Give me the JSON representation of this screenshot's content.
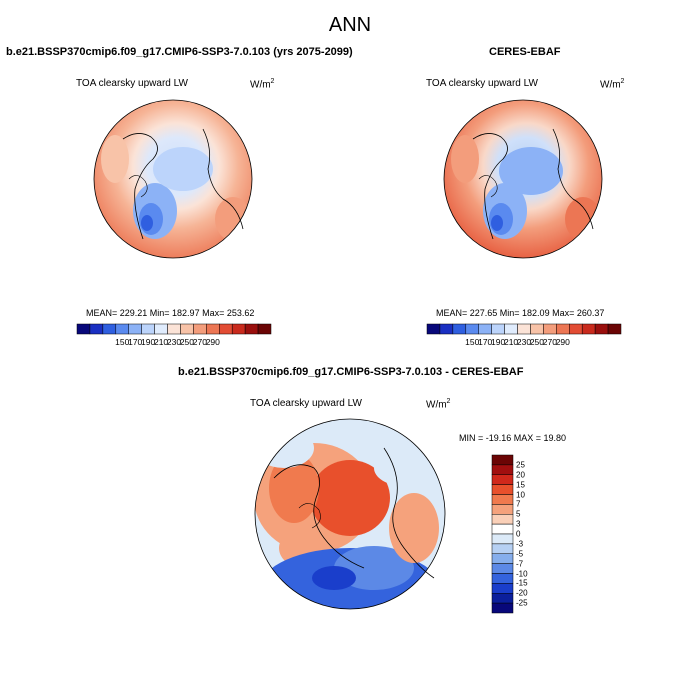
{
  "main_title": "ANN",
  "panels": [
    {
      "title": "b.e21.BSSP370cmip6.f09_g17.CMIP6-SSP3-7.0.103 (yrs 2075-2099)",
      "variable": "TOA clearsky upward LW",
      "units_base": "W/m",
      "units_exp": "2",
      "stats": "MEAN= 229.21   Min= 182.97   Max= 253.62",
      "colorbar_ticks": [
        "150",
        "170",
        "190",
        "210",
        "230",
        "250",
        "270",
        "290"
      ]
    },
    {
      "title": "CERES-EBAF",
      "variable": "TOA clearsky upward LW",
      "units_base": "W/m",
      "units_exp": "2",
      "stats": "MEAN= 227.65   Min= 182.09   Max= 260.37",
      "colorbar_ticks": [
        "150",
        "170",
        "190",
        "210",
        "230",
        "250",
        "270",
        "290"
      ]
    },
    {
      "title": "b.e21.BSSP370cmip6.f09_g17.CMIP6-SSP3-7.0.103 - CERES-EBAF",
      "variable": "TOA clearsky upward LW",
      "units_base": "W/m",
      "units_exp": "2",
      "stats": "MIN = -19.16 MAX = 19.80",
      "colorbar_ticks": [
        "25",
        "20",
        "15",
        "10",
        "7",
        "5",
        "3",
        "0",
        "-3",
        "-5",
        "-7",
        "-10",
        "-15",
        "-20",
        "-25"
      ]
    }
  ],
  "colors": {
    "abs_scale": [
      "#08087a",
      "#1a2fc2",
      "#2f5fe0",
      "#5a8aef",
      "#8cb2f6",
      "#bcd4fb",
      "#e0ecfd",
      "#fbe3d7",
      "#f8c3a8",
      "#f39d7c",
      "#ec7654",
      "#e24c34",
      "#c92a1d",
      "#9a0f0e",
      "#6b0505"
    ],
    "diff_scale": [
      "#6b0505",
      "#a10f0f",
      "#d0281b",
      "#e8502c",
      "#f07a4e",
      "#f5a27c",
      "#fad0b8",
      "#ffffff",
      "#dceaf8",
      "#b6d0f3",
      "#86aeec",
      "#5c89e6",
      "#3463dd",
      "#1a3ecb",
      "#0b1f9c",
      "#08087a"
    ]
  }
}
